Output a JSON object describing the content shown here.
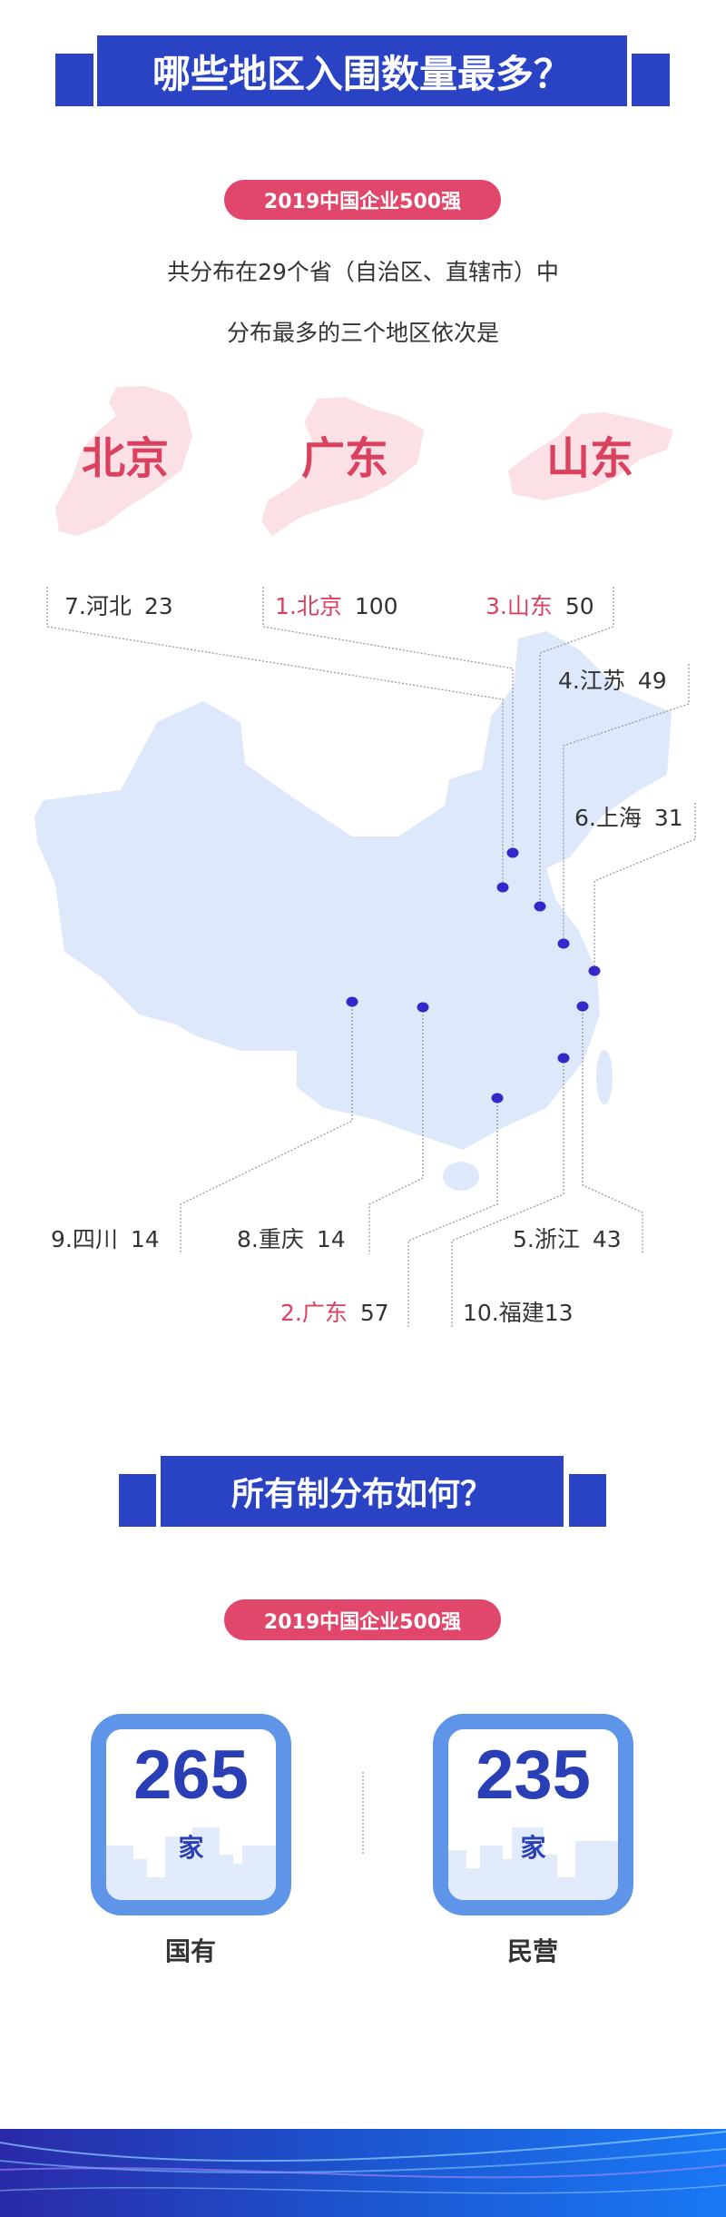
{
  "section1": {
    "title": "哪些地区入围数量最多？",
    "badge": "2019中国企业500强",
    "line1": "共分布在29个省（自治区、直辖市）中",
    "line2": "分布最多的三个地区依次是",
    "top3": [
      "北京",
      "广东",
      "山东"
    ],
    "regions": [
      {
        "label": "7.河北",
        "value": "23",
        "highlight": false
      },
      {
        "label": "1.北京",
        "value": "100",
        "highlight": true
      },
      {
        "label": "3.山东",
        "value": "50",
        "highlight": true
      },
      {
        "label": "4.江苏",
        "value": "49",
        "highlight": false
      },
      {
        "label": "6.上海",
        "value": "31",
        "highlight": false
      },
      {
        "label": "9.四川",
        "value": "14",
        "highlight": false
      },
      {
        "label": "8.重庆",
        "value": "14",
        "highlight": false
      },
      {
        "label": "5.浙江",
        "value": "43",
        "highlight": false
      },
      {
        "label": "2.广东",
        "value": "57",
        "highlight": true
      },
      {
        "label": "10.福建",
        "value": "13",
        "highlight": false
      }
    ]
  },
  "section2": {
    "title": "所有制分布如何？",
    "badge": "2019中国企业500强",
    "cards": [
      {
        "value": "265",
        "unit": "家",
        "caption": "国有"
      },
      {
        "value": "235",
        "unit": "家",
        "caption": "民营"
      }
    ]
  },
  "colors": {
    "header_blue": "#2a42c4",
    "accent_pink": "#e0476a",
    "dot": "#3527c8",
    "map_fill": "#dde8fb"
  }
}
